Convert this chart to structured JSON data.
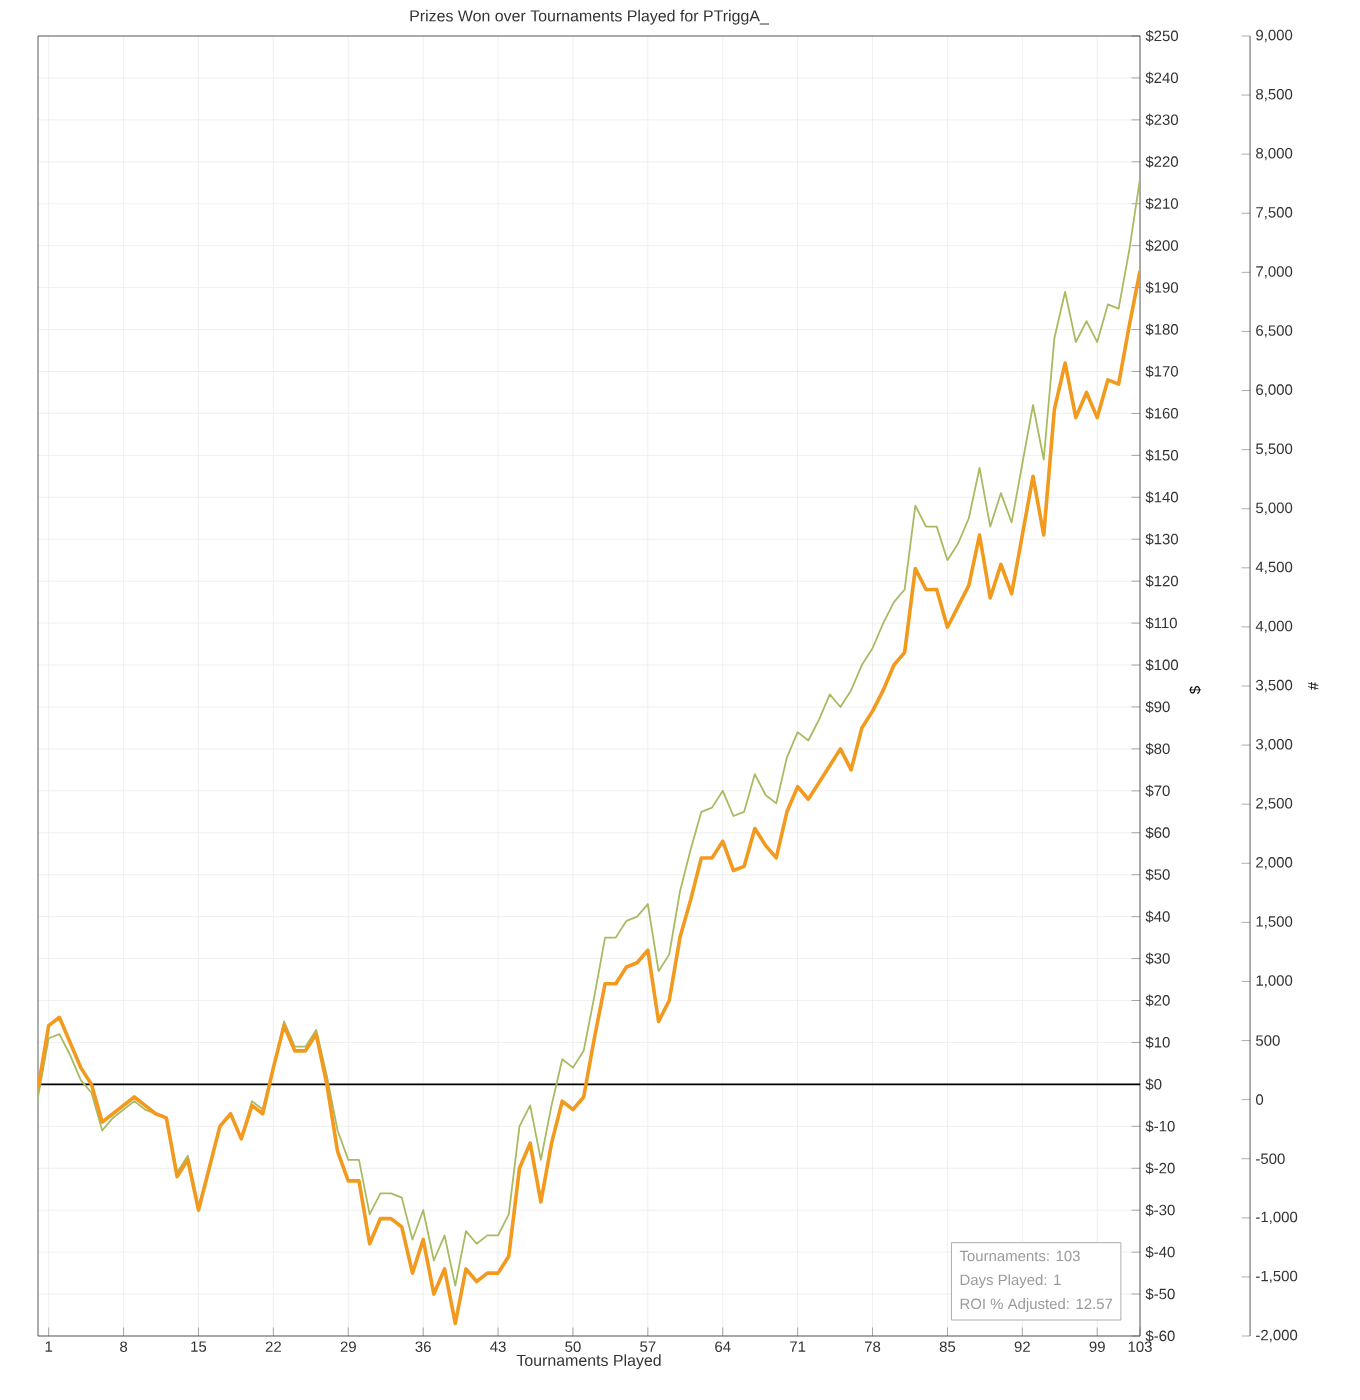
{
  "chart_data": {
    "type": "line",
    "title": "Prizes Won over Tournaments Played for PTriggA_",
    "xlabel": "Tournaments Played",
    "ylabel": "$",
    "y2label": "#",
    "x": [
      0,
      1,
      2,
      3,
      4,
      5,
      6,
      7,
      8,
      9,
      10,
      11,
      12,
      13,
      14,
      15,
      16,
      17,
      18,
      19,
      20,
      21,
      22,
      23,
      24,
      25,
      26,
      27,
      28,
      29,
      30,
      31,
      32,
      33,
      34,
      35,
      36,
      37,
      38,
      39,
      40,
      41,
      42,
      43,
      44,
      45,
      46,
      47,
      48,
      49,
      50,
      51,
      52,
      53,
      54,
      55,
      56,
      57,
      58,
      59,
      60,
      61,
      62,
      63,
      64,
      65,
      66,
      67,
      68,
      69,
      70,
      71,
      72,
      73,
      74,
      75,
      76,
      77,
      78,
      79,
      80,
      81,
      82,
      83,
      84,
      85,
      86,
      87,
      88,
      89,
      90,
      91,
      92,
      93,
      94,
      95,
      96,
      97,
      98,
      99,
      100,
      101,
      102,
      103
    ],
    "series": [
      {
        "color": "#a9bb62",
        "values": [
          -3,
          11,
          12,
          7,
          1,
          -2,
          -11,
          -8,
          -6,
          -4,
          -6,
          -7,
          -8,
          -21,
          -17,
          -29,
          -20,
          -10,
          -7,
          -13,
          -4,
          -6,
          4,
          15,
          9,
          9,
          13,
          2,
          -11,
          -18,
          -18,
          -31,
          -26,
          -26,
          -27,
          -37,
          -30,
          -42,
          -36,
          -48,
          -35,
          -38,
          -36,
          -36,
          -31,
          -10,
          -5,
          -18,
          -5,
          6,
          4,
          8,
          21,
          35,
          35,
          39,
          40,
          43,
          27,
          31,
          46,
          56,
          65,
          66,
          70,
          64,
          65,
          74,
          69,
          67,
          78,
          84,
          82,
          87,
          93,
          90,
          94,
          100,
          104,
          110,
          115,
          118,
          138,
          133,
          133,
          125,
          129,
          135,
          147,
          133,
          141,
          134,
          148,
          162,
          149,
          178,
          189,
          177,
          182,
          177,
          186,
          185,
          199,
          216
        ]
      },
      {
        "color": "#f19a1e",
        "values": [
          -1,
          14,
          16,
          10,
          4,
          0,
          -9,
          -7,
          -5,
          -3,
          -5,
          -7,
          -8,
          -22,
          -18,
          -30,
          -20,
          -10,
          -7,
          -13,
          -5,
          -7,
          4,
          14,
          8,
          8,
          12,
          0,
          -16,
          -23,
          -23,
          -38,
          -32,
          -32,
          -34,
          -45,
          -37,
          -50,
          -44,
          -57,
          -44,
          -47,
          -45,
          -45,
          -41,
          -20,
          -14,
          -28,
          -14,
          -4,
          -6,
          -3,
          11,
          24,
          24,
          28,
          29,
          32,
          15,
          20,
          35,
          44,
          54,
          54,
          58,
          51,
          52,
          61,
          57,
          54,
          65,
          71,
          68,
          72,
          76,
          80,
          75,
          85,
          89,
          94,
          100,
          103,
          123,
          118,
          118,
          109,
          114,
          119,
          131,
          116,
          124,
          117,
          131,
          145,
          131,
          161,
          172,
          159,
          165,
          159,
          168,
          167,
          181,
          194
        ]
      }
    ],
    "xlim": [
      0,
      103
    ],
    "xticks": [
      1,
      8,
      15,
      22,
      29,
      36,
      43,
      50,
      57,
      64,
      71,
      78,
      85,
      92,
      99,
      103
    ],
    "ylim": [
      -60,
      250
    ],
    "yticks": [
      {
        "value": -60,
        "label": "$-60"
      },
      {
        "value": -50,
        "label": "$-50"
      },
      {
        "value": -40,
        "label": "$-40"
      },
      {
        "value": -30,
        "label": "$-30"
      },
      {
        "value": -20,
        "label": "$-20"
      },
      {
        "value": -10,
        "label": "$-10"
      },
      {
        "value": 0,
        "label": "$0"
      },
      {
        "value": 10,
        "label": "$10"
      },
      {
        "value": 20,
        "label": "$20"
      },
      {
        "value": 30,
        "label": "$30"
      },
      {
        "value": 40,
        "label": "$40"
      },
      {
        "value": 50,
        "label": "$50"
      },
      {
        "value": 60,
        "label": "$60"
      },
      {
        "value": 70,
        "label": "$70"
      },
      {
        "value": 80,
        "label": "$80"
      },
      {
        "value": 90,
        "label": "$90"
      },
      {
        "value": 100,
        "label": "$100"
      },
      {
        "value": 110,
        "label": "$110"
      },
      {
        "value": 120,
        "label": "$120"
      },
      {
        "value": 130,
        "label": "$130"
      },
      {
        "value": 140,
        "label": "$140"
      },
      {
        "value": 150,
        "label": "$150"
      },
      {
        "value": 160,
        "label": "$160"
      },
      {
        "value": 170,
        "label": "$170"
      },
      {
        "value": 180,
        "label": "$180"
      },
      {
        "value": 190,
        "label": "$190"
      },
      {
        "value": 200,
        "label": "$200"
      },
      {
        "value": 210,
        "label": "$210"
      },
      {
        "value": 220,
        "label": "$220"
      },
      {
        "value": 230,
        "label": "$230"
      },
      {
        "value": 240,
        "label": "$240"
      },
      {
        "value": 250,
        "label": "$250"
      }
    ],
    "y2lim": [
      -2000,
      9000
    ],
    "y2ticks": [
      {
        "value": -2000,
        "label": "-2,000"
      },
      {
        "value": -1500,
        "label": "-1,500"
      },
      {
        "value": -1000,
        "label": "-1,000"
      },
      -500,
      0,
      500,
      {
        "value": 1000,
        "label": "1,000"
      },
      {
        "value": 1500,
        "label": "1,500"
      },
      {
        "value": 2000,
        "label": "2,000"
      },
      {
        "value": 2500,
        "label": "2,500"
      },
      {
        "value": 3000,
        "label": "3,000"
      },
      {
        "value": 3500,
        "label": "3,500"
      },
      {
        "value": 4000,
        "label": "4,000"
      },
      {
        "value": 4500,
        "label": "4,500"
      },
      {
        "value": 5000,
        "label": "5,000"
      },
      {
        "value": 5500,
        "label": "5,500"
      },
      {
        "value": 6000,
        "label": "6,000"
      },
      {
        "value": 6500,
        "label": "6,500"
      },
      {
        "value": 7000,
        "label": "7,000"
      },
      {
        "value": 7500,
        "label": "7,500"
      },
      {
        "value": 8000,
        "label": "8,000"
      },
      {
        "value": 8500,
        "label": "8,500"
      },
      {
        "value": 9000,
        "label": "9,000"
      }
    ],
    "ref_lines": [
      {
        "axis": "y",
        "value": 0,
        "color": "#000000"
      }
    ],
    "grid": true,
    "annotations": [
      "Tournaments: 103",
      "Days Played: 1",
      "ROI % Adjusted: 12.57"
    ]
  }
}
